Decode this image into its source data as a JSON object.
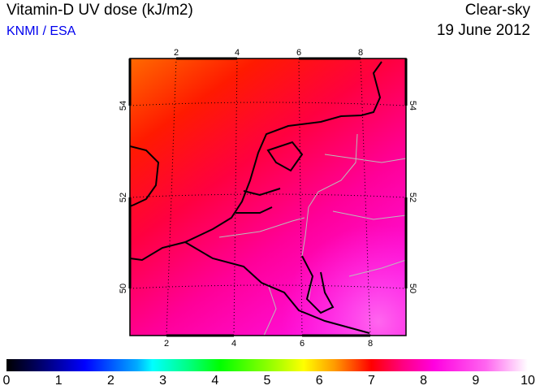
{
  "header": {
    "title": "Vitamin-D UV dose (kJ/m2)",
    "source": "KNMI / ESA",
    "mode": "Clear-sky",
    "date": "19 June 2012"
  },
  "map": {
    "lon_ticks_top": [
      "2",
      "4",
      "6",
      "8"
    ],
    "lon_ticks_bottom": [
      "2",
      "4",
      "6",
      "8"
    ],
    "lat_ticks": [
      "54",
      "52",
      "50"
    ]
  },
  "colorbar": {
    "min": 0,
    "max": 10,
    "labels": [
      "0",
      "1",
      "2",
      "3",
      "4",
      "5",
      "6",
      "7",
      "8",
      "9",
      "10"
    ]
  }
}
